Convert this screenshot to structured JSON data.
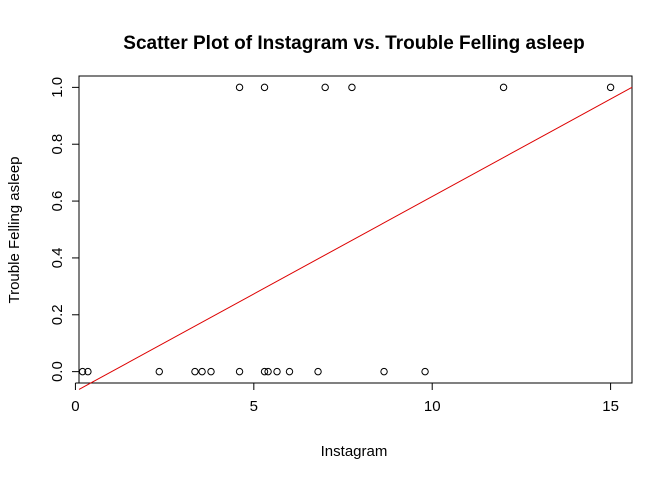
{
  "chart_data": {
    "type": "scatter",
    "title": "Scatter Plot of Instagram vs. Trouble Felling asleep",
    "xlabel": "Instagram",
    "ylabel": "Trouble Felling asleep",
    "xlim": [
      0.1,
      15.6
    ],
    "ylim": [
      -0.04,
      1.04
    ],
    "x_ticks": [
      0,
      5,
      10,
      15
    ],
    "y_ticks": [
      0.0,
      0.2,
      0.4,
      0.6,
      0.8,
      1.0
    ],
    "grid": false,
    "legend": "none",
    "points": [
      {
        "x": 0.2,
        "y": 0
      },
      {
        "x": 0.35,
        "y": 0
      },
      {
        "x": 2.35,
        "y": 0
      },
      {
        "x": 3.35,
        "y": 0
      },
      {
        "x": 3.55,
        "y": 0
      },
      {
        "x": 3.8,
        "y": 0
      },
      {
        "x": 4.6,
        "y": 0
      },
      {
        "x": 5.3,
        "y": 0
      },
      {
        "x": 5.4,
        "y": 0
      },
      {
        "x": 5.65,
        "y": 0
      },
      {
        "x": 6.0,
        "y": 0
      },
      {
        "x": 6.8,
        "y": 0
      },
      {
        "x": 8.65,
        "y": 0
      },
      {
        "x": 9.8,
        "y": 0
      },
      {
        "x": 4.6,
        "y": 1
      },
      {
        "x": 5.3,
        "y": 1
      },
      {
        "x": 7.0,
        "y": 1
      },
      {
        "x": 7.75,
        "y": 1
      },
      {
        "x": 12.0,
        "y": 1
      },
      {
        "x": 15.0,
        "y": 1
      }
    ],
    "regression_line": {
      "color": "#dd0000",
      "x": [
        0.1,
        15.6
      ],
      "y": [
        -0.0625,
        1.0
      ]
    },
    "point_color": "#000000"
  }
}
